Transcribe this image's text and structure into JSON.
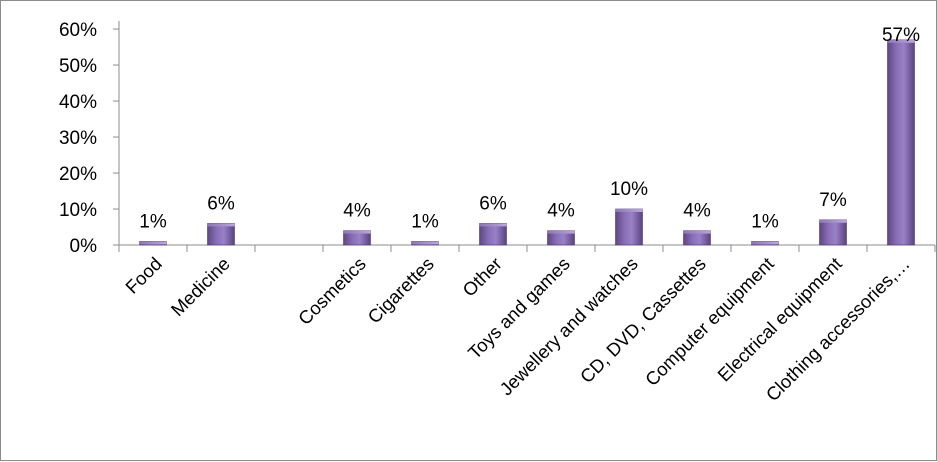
{
  "chart_data": {
    "type": "bar",
    "title": "",
    "xlabel": "",
    "ylabel": "",
    "categories": [
      "Food",
      "Medicine",
      "",
      "Cosmetics",
      "Cigarettes",
      "Other",
      "Toys and games",
      "Jewellery and watches",
      "CD, DVD, Cassettes",
      "Computer equipment",
      "Electrical equipment",
      "Clothing accessories,…"
    ],
    "values": [
      1,
      6,
      null,
      4,
      1,
      6,
      4,
      10,
      4,
      1,
      7,
      57
    ],
    "data_labels": [
      "1%",
      "6%",
      "",
      "4%",
      "1%",
      "6%",
      "4%",
      "10%",
      "4%",
      "1%",
      "7%",
      "57%"
    ],
    "value_unit": "%",
    "ylim": [
      0,
      60
    ],
    "y_ticks": [
      0,
      10,
      20,
      30,
      40,
      50,
      60
    ],
    "y_tick_labels": [
      "0%",
      "10%",
      "20%",
      "30%",
      "40%",
      "50%",
      "60%"
    ],
    "grid": false,
    "legend": "none",
    "bar_color": "#7b5ea7"
  }
}
